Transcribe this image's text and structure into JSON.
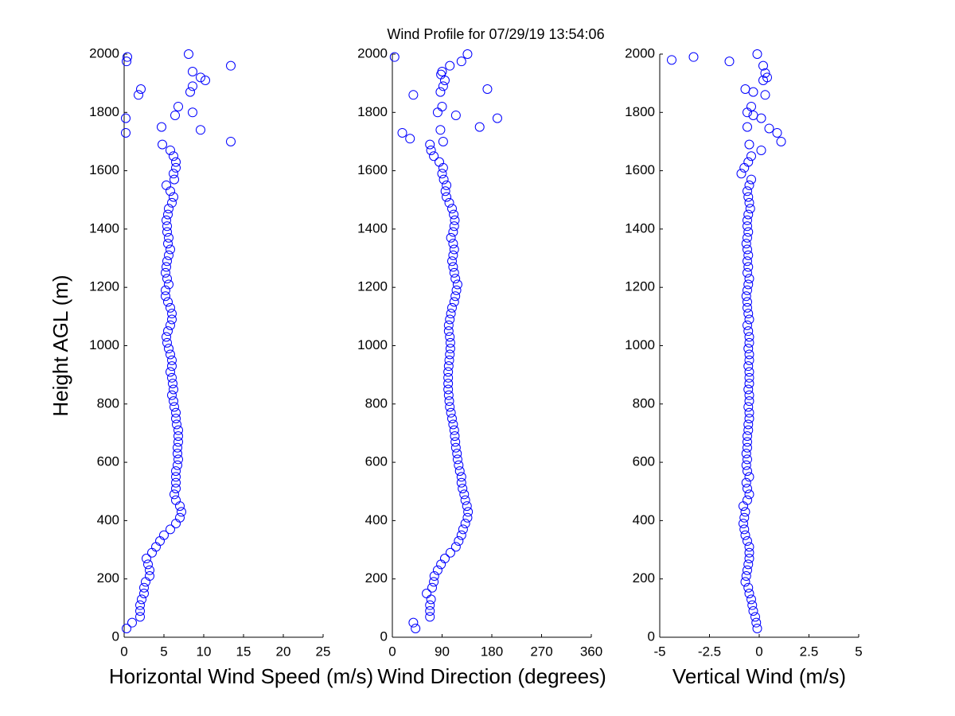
{
  "title": "Wind Profile for  07/29/19 13:54:06",
  "chart_data": [
    {
      "type": "scatter",
      "xlabel": "Horizontal Wind Speed (m/s)",
      "ylabel": "Height AGL (m)",
      "color": "#0000ff",
      "xlim": [
        0,
        25
      ],
      "xticks": [
        0,
        5,
        10,
        15,
        20,
        25
      ],
      "ylim": [
        0,
        2000
      ],
      "yticks": [
        0,
        200,
        400,
        600,
        800,
        1000,
        1200,
        1400,
        1600,
        1800,
        2000
      ],
      "x": [
        0.3,
        1,
        2,
        2,
        2,
        2.2,
        2.5,
        2.5,
        2.7,
        3.2,
        3.2,
        3,
        2.8,
        3.5,
        4,
        4.5,
        5,
        5.8,
        6.5,
        7,
        7.2,
        7,
        6.5,
        6.3,
        6.5,
        6.5,
        6.5,
        6.5,
        6.7,
        6.8,
        6.7,
        6.7,
        6.8,
        6.8,
        6.8,
        6.6,
        6.5,
        6.5,
        6.3,
        6.2,
        6,
        6.2,
        6.1,
        6,
        5.8,
        6,
        6,
        5.8,
        5.6,
        5.4,
        5.3,
        5.5,
        5.8,
        6,
        6,
        5.8,
        5.5,
        5.2,
        5.2,
        5.6,
        5.4,
        5.2,
        5.3,
        5.4,
        5.6,
        5.8,
        5.5,
        5.6,
        5.4,
        5.4,
        5.3,
        5.5,
        5.6,
        6,
        6.2,
        5.8,
        5.3,
        6.3,
        6.2,
        6.5,
        6.5,
        6.2,
        5.8,
        4.8,
        13.4,
        0.2,
        9.6,
        4.7,
        0.2,
        6.4,
        8.6,
        6.8,
        1.8,
        8.3,
        2.1,
        8.6,
        10.2,
        9.6,
        8.6,
        13.4,
        0.3,
        0.4,
        8.1
      ],
      "values": [
        30,
        50,
        70,
        90,
        110,
        130,
        150,
        170,
        190,
        210,
        230,
        250,
        270,
        290,
        310,
        330,
        350,
        370,
        390,
        410,
        430,
        450,
        470,
        490,
        510,
        530,
        550,
        570,
        590,
        610,
        630,
        650,
        670,
        690,
        710,
        730,
        750,
        770,
        790,
        810,
        830,
        850,
        870,
        890,
        910,
        930,
        950,
        970,
        990,
        1010,
        1030,
        1050,
        1070,
        1090,
        1110,
        1130,
        1150,
        1170,
        1190,
        1210,
        1230,
        1250,
        1270,
        1290,
        1310,
        1330,
        1350,
        1370,
        1390,
        1410,
        1430,
        1450,
        1470,
        1490,
        1510,
        1530,
        1550,
        1570,
        1590,
        1610,
        1630,
        1650,
        1670,
        1690,
        1700,
        1730,
        1740,
        1750,
        1780,
        1790,
        1800,
        1820,
        1860,
        1870,
        1880,
        1890,
        1910,
        1920,
        1940,
        1960,
        1975,
        1990,
        2000
      ]
    },
    {
      "type": "scatter",
      "xlabel": "Wind Direction (degrees)",
      "color": "#0000ff",
      "xlim": [
        0,
        360
      ],
      "xticks": [
        0,
        90,
        180,
        270,
        360
      ],
      "ylim": [
        0,
        2000
      ],
      "yticks": [
        0,
        200,
        400,
        600,
        800,
        1000,
        1200,
        1400,
        1600,
        1800,
        2000
      ],
      "x": [
        42,
        38,
        68,
        68,
        68,
        70,
        62,
        72,
        75,
        76,
        82,
        88,
        95,
        105,
        115,
        120,
        125,
        128,
        132,
        136,
        137,
        135,
        132,
        130,
        127,
        125,
        125,
        122,
        120,
        118,
        117,
        115,
        114,
        113,
        112,
        110,
        108,
        106,
        104,
        103,
        102,
        101,
        101,
        101,
        101,
        102,
        103,
        104,
        105,
        105,
        104,
        102,
        102,
        104,
        106,
        108,
        112,
        114,
        116,
        118,
        114,
        112,
        110,
        108,
        110,
        112,
        110,
        106,
        110,
        112,
        113,
        111,
        108,
        103,
        98,
        96,
        98,
        93,
        90,
        92,
        85,
        75,
        70,
        68,
        92,
        32,
        18,
        87,
        158,
        190,
        115,
        82,
        90,
        38,
        87,
        172,
        92,
        95,
        88,
        90,
        104,
        125,
        4,
        136
      ],
      "values": [
        30,
        50,
        70,
        90,
        110,
        130,
        150,
        170,
        190,
        210,
        230,
        250,
        270,
        290,
        310,
        330,
        350,
        370,
        390,
        410,
        430,
        450,
        470,
        490,
        510,
        530,
        550,
        570,
        590,
        610,
        630,
        650,
        670,
        690,
        710,
        730,
        750,
        770,
        790,
        810,
        830,
        850,
        870,
        890,
        910,
        930,
        950,
        970,
        990,
        1010,
        1030,
        1050,
        1070,
        1090,
        1110,
        1130,
        1150,
        1170,
        1190,
        1210,
        1230,
        1250,
        1270,
        1290,
        1310,
        1330,
        1350,
        1370,
        1390,
        1410,
        1430,
        1450,
        1470,
        1490,
        1510,
        1530,
        1550,
        1570,
        1590,
        1610,
        1630,
        1650,
        1670,
        1690,
        1700,
        1710,
        1730,
        1740,
        1750,
        1780,
        1790,
        1800,
        1820,
        1860,
        1870,
        1880,
        1890,
        1910,
        1930,
        1940,
        1960,
        1975,
        1990,
        2000
      ]
    },
    {
      "type": "scatter",
      "xlabel": "Vertical Wind (m/s)",
      "color": "#0000ff",
      "xlim": [
        -5,
        5
      ],
      "xticks": [
        -5,
        -2.5,
        0,
        2.5,
        5
      ],
      "ylim": [
        0,
        2000
      ],
      "yticks": [
        0,
        200,
        400,
        600,
        800,
        1000,
        1200,
        1400,
        1600,
        1800,
        2000
      ],
      "x": [
        -0.1,
        -0.15,
        -0.2,
        -0.3,
        -0.35,
        -0.4,
        -0.5,
        -0.55,
        -0.7,
        -0.65,
        -0.6,
        -0.55,
        -0.5,
        -0.5,
        -0.5,
        -0.6,
        -0.7,
        -0.75,
        -0.8,
        -0.75,
        -0.7,
        -0.8,
        -0.6,
        -0.5,
        -0.6,
        -0.65,
        -0.5,
        -0.6,
        -0.65,
        -0.6,
        -0.65,
        -0.6,
        -0.6,
        -0.6,
        -0.55,
        -0.55,
        -0.5,
        -0.5,
        -0.55,
        -0.5,
        -0.5,
        -0.55,
        -0.5,
        -0.5,
        -0.5,
        -0.55,
        -0.5,
        -0.5,
        -0.55,
        -0.5,
        -0.5,
        -0.55,
        -0.6,
        -0.5,
        -0.55,
        -0.6,
        -0.6,
        -0.65,
        -0.6,
        -0.55,
        -0.5,
        -0.6,
        -0.55,
        -0.6,
        -0.55,
        -0.6,
        -0.65,
        -0.6,
        -0.55,
        -0.6,
        -0.6,
        -0.55,
        -0.45,
        -0.5,
        -0.55,
        -0.6,
        -0.5,
        -0.4,
        -0.9,
        -0.75,
        -0.55,
        -0.4,
        0.1,
        -0.5,
        1.1,
        0.9,
        0.5,
        -0.6,
        0.1,
        -0.3,
        -0.6,
        -0.4,
        0.3,
        -0.3,
        -0.7,
        0.2,
        0.4,
        0.3,
        0.2,
        -1.5,
        -4.4,
        -3.3,
        -0.1
      ],
      "values": [
        30,
        50,
        70,
        90,
        110,
        130,
        150,
        170,
        190,
        210,
        230,
        250,
        270,
        290,
        310,
        330,
        350,
        370,
        390,
        410,
        430,
        450,
        470,
        490,
        510,
        530,
        550,
        570,
        590,
        610,
        630,
        650,
        670,
        690,
        710,
        730,
        750,
        770,
        790,
        810,
        830,
        850,
        870,
        890,
        910,
        930,
        950,
        970,
        990,
        1010,
        1030,
        1050,
        1070,
        1090,
        1110,
        1130,
        1150,
        1170,
        1190,
        1210,
        1230,
        1250,
        1270,
        1290,
        1310,
        1330,
        1350,
        1370,
        1390,
        1410,
        1430,
        1450,
        1470,
        1490,
        1510,
        1530,
        1550,
        1570,
        1590,
        1610,
        1630,
        1650,
        1670,
        1690,
        1700,
        1730,
        1745,
        1750,
        1780,
        1790,
        1800,
        1820,
        1860,
        1870,
        1880,
        1910,
        1920,
        1935,
        1960,
        1975,
        1980,
        1990,
        2000
      ]
    }
  ]
}
